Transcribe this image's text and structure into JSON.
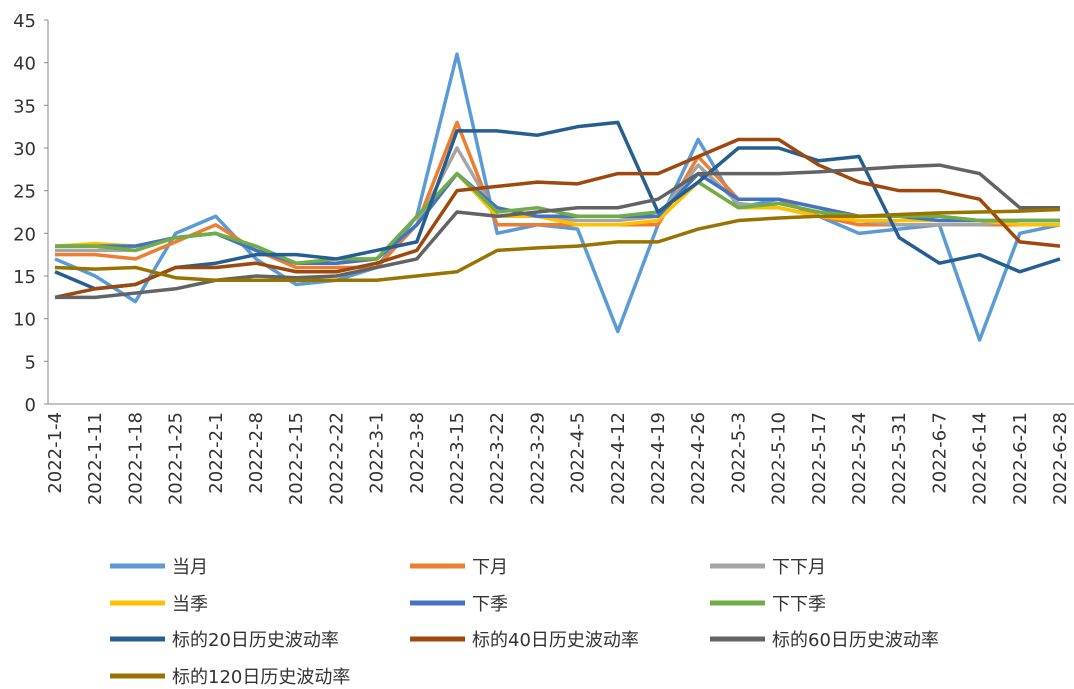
{
  "chart_data": {
    "type": "line",
    "categories": [
      "2022-1-4",
      "2022-1-11",
      "2022-1-18",
      "2022-1-25",
      "2022-2-1",
      "2022-2-8",
      "2022-2-15",
      "2022-2-22",
      "2022-3-1",
      "2022-3-8",
      "2022-3-15",
      "2022-3-22",
      "2022-3-29",
      "2022-4-5",
      "2022-4-12",
      "2022-4-19",
      "2022-4-26",
      "2022-5-3",
      "2022-5-10",
      "2022-5-17",
      "2022-5-24",
      "2022-5-31",
      "2022-6-7",
      "2022-6-14",
      "2022-6-21",
      "2022-6-28"
    ],
    "series": [
      {
        "name": "当月",
        "color": "#5b9bd5",
        "values": [
          17,
          15,
          12,
          20,
          22,
          17,
          14,
          14.5,
          16,
          22,
          41,
          20,
          21,
          20.5,
          8.5,
          21,
          31,
          23,
          24,
          22,
          20,
          20.5,
          21,
          7.5,
          20,
          21
        ]
      },
      {
        "name": "下月",
        "color": "#ed7d31",
        "values": [
          17.5,
          17.5,
          17,
          19,
          21,
          18,
          16,
          16,
          16,
          21,
          33,
          21,
          21,
          21,
          21,
          21,
          29,
          24,
          24,
          22,
          21,
          21,
          21,
          21,
          21,
          21
        ]
      },
      {
        "name": "下下月",
        "color": "#a5a5a5",
        "values": [
          18,
          18,
          18,
          19.5,
          20,
          18,
          16.5,
          16.5,
          17,
          21,
          30,
          22,
          22,
          21.5,
          21.5,
          22,
          28,
          23.5,
          23,
          22,
          21.5,
          21,
          21,
          21,
          21.5,
          21.5
        ]
      },
      {
        "name": "当季",
        "color": "#ffc000",
        "values": [
          18.5,
          18.8,
          18.5,
          19.5,
          20,
          18,
          16.5,
          16.5,
          17,
          21,
          27,
          22,
          22,
          21,
          21,
          21.5,
          26,
          23,
          23,
          22,
          21.5,
          21.5,
          21.5,
          21.5,
          21,
          21
        ]
      },
      {
        "name": "下季",
        "color": "#4472c4",
        "values": [
          18.5,
          18.5,
          18.5,
          19.5,
          20,
          18,
          16.5,
          16.5,
          17,
          21,
          27,
          23,
          22,
          22,
          22,
          22,
          27,
          24,
          24,
          23,
          22,
          22,
          21.5,
          21.5,
          21.5,
          21.5
        ]
      },
      {
        "name": "下下季",
        "color": "#70ad47",
        "values": [
          18.5,
          18.5,
          18,
          19.5,
          20,
          18.5,
          16.5,
          17,
          17,
          22,
          27,
          22.5,
          23,
          22,
          22,
          22.5,
          26,
          23,
          23.5,
          22.5,
          22,
          22,
          22,
          21.5,
          21.5,
          21.5
        ]
      },
      {
        "name": "标的20日历史波动率",
        "color": "#255e91",
        "values": [
          15.5,
          13.5,
          14,
          16,
          16.5,
          17.5,
          17.5,
          17,
          18,
          19,
          32,
          32,
          31.5,
          32.5,
          33,
          22.5,
          26,
          30,
          30,
          28.5,
          29,
          19.5,
          16.5,
          17.5,
          15.5,
          17
        ]
      },
      {
        "name": "标的40日历史波动率",
        "color": "#9e480e",
        "values": [
          12.5,
          13.5,
          14,
          16,
          16,
          16.5,
          15.5,
          15.5,
          16.5,
          18,
          25,
          25.5,
          26,
          25.8,
          27,
          27,
          29,
          31,
          31,
          28,
          26,
          25,
          25,
          24,
          19,
          18.5
        ]
      },
      {
        "name": "标的60日历史波动率",
        "color": "#636363",
        "values": [
          12.5,
          12.5,
          13,
          13.5,
          14.5,
          15,
          14.8,
          15,
          16,
          17,
          22.5,
          22,
          22.5,
          23,
          23,
          24,
          27,
          27,
          27,
          27.2,
          27.5,
          27.8,
          28,
          27,
          23,
          23
        ]
      },
      {
        "name": "标的120日历史波动率",
        "color": "#997300",
        "values": [
          16,
          15.8,
          16,
          14.8,
          14.5,
          14.5,
          14.5,
          14.5,
          14.5,
          15,
          15.5,
          18,
          18.3,
          18.5,
          19,
          19,
          20.5,
          21.5,
          21.8,
          22,
          22,
          22.2,
          22.4,
          22.5,
          22.6,
          22.8
        ]
      }
    ],
    "ylim": [
      0,
      45
    ],
    "yticks": [
      0,
      5,
      10,
      15,
      20,
      25,
      30,
      35,
      40,
      45
    ],
    "grid": false
  }
}
